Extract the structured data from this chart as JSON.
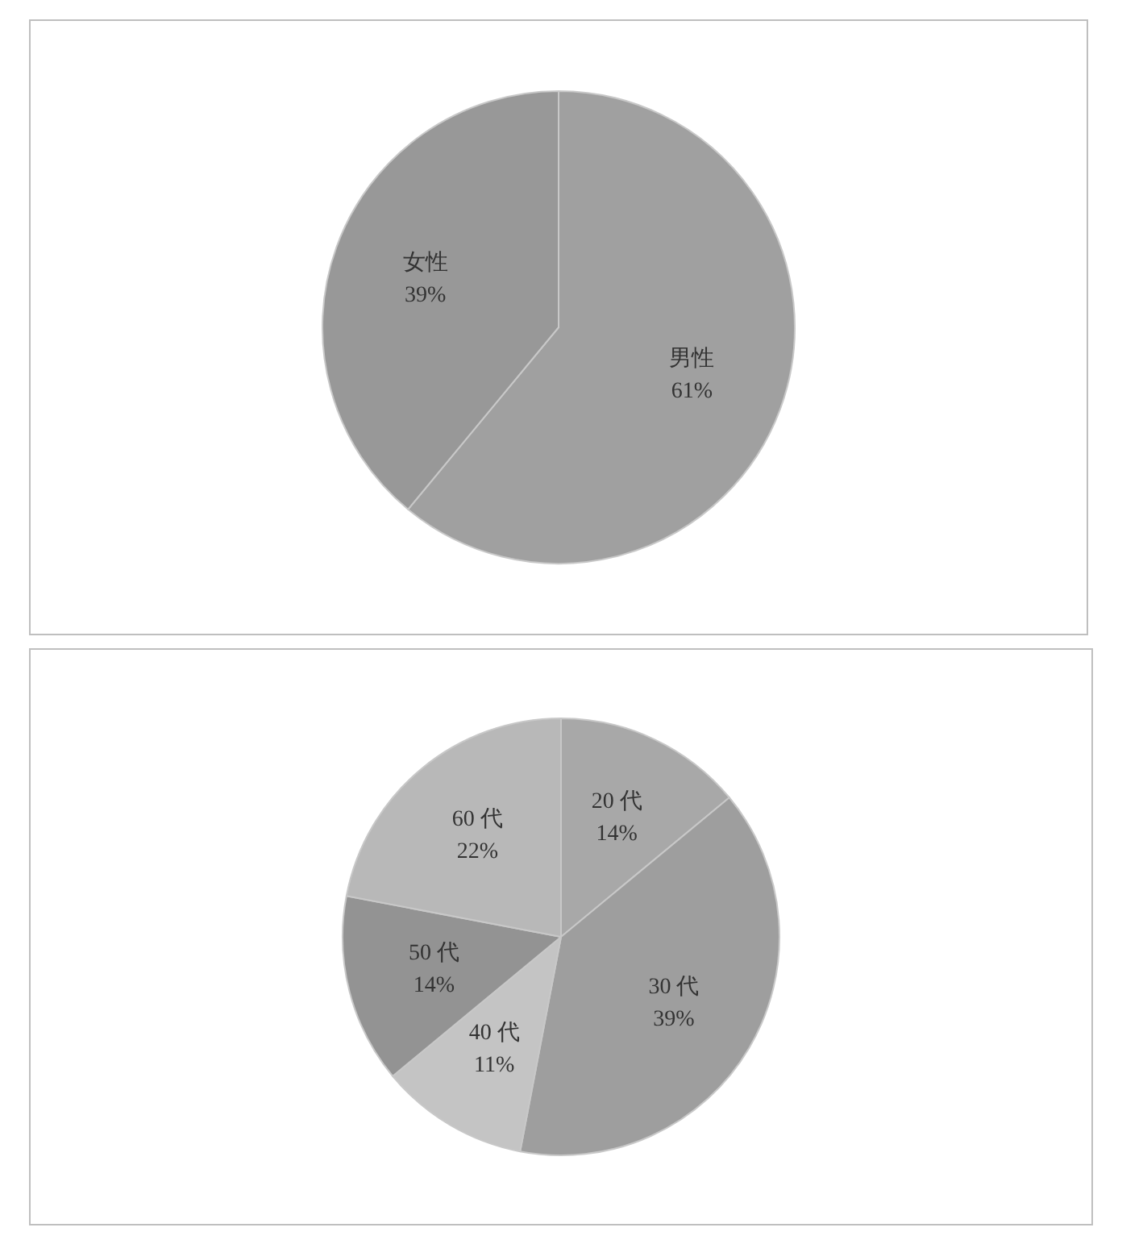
{
  "chart_data": [
    {
      "type": "pie",
      "categories": [
        "男性",
        "女性"
      ],
      "values": [
        61,
        39
      ],
      "colors": [
        "#a0a0a0",
        "#989898"
      ],
      "value_labels": [
        "61%",
        "39%"
      ],
      "legend": false
    },
    {
      "type": "pie",
      "categories": [
        "20 代",
        "30 代",
        "40 代",
        "50 代",
        "60 代"
      ],
      "values": [
        14,
        39,
        11,
        14,
        22
      ],
      "colors": [
        "#a8a8a8",
        "#9e9e9e",
        "#c4c4c4",
        "#939393",
        "#b8b8b8"
      ],
      "value_labels": [
        "14%",
        "39%",
        "11%",
        "14%",
        "22%"
      ],
      "legend": false
    }
  ]
}
